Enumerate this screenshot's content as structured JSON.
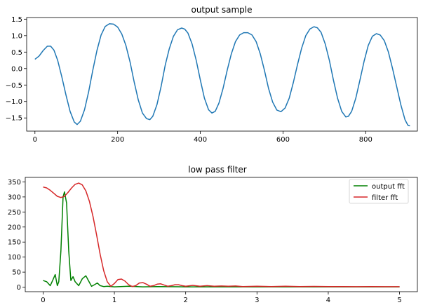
{
  "chart_data": [
    {
      "type": "line",
      "title": "output sample",
      "xlabel": "",
      "ylabel": "",
      "xlim": [
        -20,
        925
      ],
      "ylim": [
        -1.9,
        1.55
      ],
      "x_ticks": [
        0,
        200,
        400,
        600,
        800
      ],
      "y_ticks": [
        1.5,
        1.0,
        0.5,
        0.0,
        -0.5,
        -1.0,
        -1.5
      ],
      "x_tick_labels": [
        "0",
        "200",
        "400",
        "600",
        "800"
      ],
      "y_tick_labels": [
        "1.5",
        "1.0",
        "0.5",
        "0.0",
        "−0.5",
        "−1.0",
        "−1.5"
      ],
      "grid": false,
      "series": [
        {
          "color": "#1f77b4",
          "points": [
            [
              0,
              0.28
            ],
            [
              10,
              0.38
            ],
            [
              20,
              0.55
            ],
            [
              30,
              0.68
            ],
            [
              38,
              0.68
            ],
            [
              46,
              0.56
            ],
            [
              55,
              0.25
            ],
            [
              65,
              -0.25
            ],
            [
              75,
              -0.8
            ],
            [
              85,
              -1.3
            ],
            [
              95,
              -1.62
            ],
            [
              102,
              -1.7
            ],
            [
              110,
              -1.6
            ],
            [
              120,
              -1.25
            ],
            [
              130,
              -0.7
            ],
            [
              140,
              -0.05
            ],
            [
              150,
              0.55
            ],
            [
              160,
              1.02
            ],
            [
              170,
              1.28
            ],
            [
              180,
              1.36
            ],
            [
              190,
              1.35
            ],
            [
              200,
              1.26
            ],
            [
              210,
              1.05
            ],
            [
              220,
              0.7
            ],
            [
              230,
              0.2
            ],
            [
              240,
              -0.4
            ],
            [
              250,
              -0.95
            ],
            [
              260,
              -1.35
            ],
            [
              270,
              -1.52
            ],
            [
              278,
              -1.55
            ],
            [
              285,
              -1.45
            ],
            [
              295,
              -1.1
            ],
            [
              305,
              -0.55
            ],
            [
              315,
              0.1
            ],
            [
              325,
              0.6
            ],
            [
              335,
              0.98
            ],
            [
              345,
              1.18
            ],
            [
              355,
              1.23
            ],
            [
              362,
              1.2
            ],
            [
              370,
              1.08
            ],
            [
              380,
              0.75
            ],
            [
              390,
              0.25
            ],
            [
              400,
              -0.35
            ],
            [
              410,
              -0.9
            ],
            [
              420,
              -1.25
            ],
            [
              428,
              -1.35
            ],
            [
              436,
              -1.3
            ],
            [
              445,
              -1.05
            ],
            [
              455,
              -0.6
            ],
            [
              465,
              -0.05
            ],
            [
              475,
              0.45
            ],
            [
              485,
              0.82
            ],
            [
              495,
              1.02
            ],
            [
              505,
              1.09
            ],
            [
              515,
              1.09
            ],
            [
              525,
              1.02
            ],
            [
              535,
              0.82
            ],
            [
              545,
              0.45
            ],
            [
              555,
              -0.05
            ],
            [
              565,
              -0.6
            ],
            [
              575,
              -1.02
            ],
            [
              585,
              -1.26
            ],
            [
              595,
              -1.31
            ],
            [
              605,
              -1.2
            ],
            [
              615,
              -0.9
            ],
            [
              625,
              -0.42
            ],
            [
              635,
              0.12
            ],
            [
              645,
              0.62
            ],
            [
              655,
              1.0
            ],
            [
              665,
              1.2
            ],
            [
              675,
              1.27
            ],
            [
              683,
              1.24
            ],
            [
              692,
              1.1
            ],
            [
              702,
              0.75
            ],
            [
              712,
              0.25
            ],
            [
              722,
              -0.35
            ],
            [
              732,
              -0.9
            ],
            [
              742,
              -1.3
            ],
            [
              752,
              -1.47
            ],
            [
              758,
              -1.45
            ],
            [
              766,
              -1.3
            ],
            [
              776,
              -0.9
            ],
            [
              786,
              -0.35
            ],
            [
              796,
              0.22
            ],
            [
              806,
              0.7
            ],
            [
              816,
              0.98
            ],
            [
              826,
              1.06
            ],
            [
              835,
              1.02
            ],
            [
              845,
              0.85
            ],
            [
              855,
              0.5
            ],
            [
              865,
              0.0
            ],
            [
              875,
              -0.55
            ],
            [
              885,
              -1.1
            ],
            [
              895,
              -1.55
            ],
            [
              902,
              -1.72
            ],
            [
              907,
              -1.74
            ]
          ]
        }
      ]
    },
    {
      "type": "line",
      "title": "low pass filter",
      "xlabel": "",
      "ylabel": "",
      "xlim": [
        -0.25,
        5.25
      ],
      "ylim": [
        -15,
        365
      ],
      "x_ticks": [
        0,
        1,
        2,
        3,
        4,
        5
      ],
      "y_ticks": [
        350,
        300,
        250,
        200,
        150,
        100,
        50,
        0
      ],
      "x_tick_labels": [
        "0",
        "1",
        "2",
        "3",
        "4",
        "5"
      ],
      "y_tick_labels": [
        "350",
        "300",
        "250",
        "200",
        "150",
        "100",
        "50",
        "0"
      ],
      "grid": false,
      "legend_position": "top-right",
      "series": [
        {
          "name": "output fft",
          "color": "#008000",
          "points": [
            [
              0.0,
              22
            ],
            [
              0.05,
              18
            ],
            [
              0.1,
              5
            ],
            [
              0.13,
              20
            ],
            [
              0.17,
              42
            ],
            [
              0.2,
              5
            ],
            [
              0.22,
              18
            ],
            [
              0.25,
              120
            ],
            [
              0.28,
              300
            ],
            [
              0.3,
              317
            ],
            [
              0.33,
              280
            ],
            [
              0.36,
              120
            ],
            [
              0.39,
              22
            ],
            [
              0.42,
              35
            ],
            [
              0.45,
              18
            ],
            [
              0.5,
              5
            ],
            [
              0.55,
              28
            ],
            [
              0.6,
              38
            ],
            [
              0.64,
              20
            ],
            [
              0.68,
              3
            ],
            [
              0.72,
              8
            ],
            [
              0.76,
              14
            ],
            [
              0.8,
              5
            ],
            [
              0.85,
              2
            ],
            [
              0.9,
              3
            ],
            [
              1.0,
              1
            ],
            [
              1.2,
              3
            ],
            [
              1.4,
              1
            ],
            [
              1.6,
              2
            ],
            [
              2.0,
              1
            ],
            [
              3.0,
              1
            ],
            [
              4.0,
              1
            ],
            [
              5.0,
              1
            ]
          ]
        },
        {
          "name": "filter fft",
          "color": "#d62728",
          "points": [
            [
              0.0,
              333
            ],
            [
              0.05,
              330
            ],
            [
              0.1,
              322
            ],
            [
              0.15,
              312
            ],
            [
              0.2,
              302
            ],
            [
              0.25,
              298
            ],
            [
              0.3,
              302
            ],
            [
              0.35,
              315
            ],
            [
              0.4,
              330
            ],
            [
              0.45,
              342
            ],
            [
              0.5,
              346
            ],
            [
              0.55,
              340
            ],
            [
              0.6,
              320
            ],
            [
              0.65,
              285
            ],
            [
              0.7,
              235
            ],
            [
              0.75,
              175
            ],
            [
              0.8,
              110
            ],
            [
              0.85,
              55
            ],
            [
              0.9,
              18
            ],
            [
              0.95,
              3
            ],
            [
              1.0,
              12
            ],
            [
              1.05,
              25
            ],
            [
              1.1,
              27
            ],
            [
              1.15,
              20
            ],
            [
              1.2,
              8
            ],
            [
              1.25,
              2
            ],
            [
              1.3,
              5
            ],
            [
              1.35,
              14
            ],
            [
              1.4,
              15
            ],
            [
              1.45,
              10
            ],
            [
              1.5,
              3
            ],
            [
              1.55,
              5
            ],
            [
              1.6,
              10
            ],
            [
              1.65,
              11
            ],
            [
              1.7,
              7
            ],
            [
              1.75,
              3
            ],
            [
              1.8,
              5
            ],
            [
              1.85,
              8
            ],
            [
              1.9,
              8
            ],
            [
              1.95,
              5
            ],
            [
              2.0,
              3
            ],
            [
              2.1,
              6
            ],
            [
              2.2,
              3
            ],
            [
              2.3,
              5
            ],
            [
              2.4,
              3
            ],
            [
              2.5,
              4
            ],
            [
              2.6,
              3
            ],
            [
              2.7,
              4
            ],
            [
              2.8,
              2
            ],
            [
              3.0,
              3
            ],
            [
              3.2,
              2
            ],
            [
              3.4,
              3
            ],
            [
              3.6,
              2
            ],
            [
              3.8,
              2.5
            ],
            [
              4.0,
              2
            ],
            [
              4.2,
              2
            ],
            [
              4.4,
              1.5
            ],
            [
              4.6,
              2
            ],
            [
              4.8,
              1.5
            ],
            [
              5.0,
              1.5
            ]
          ]
        }
      ]
    }
  ]
}
